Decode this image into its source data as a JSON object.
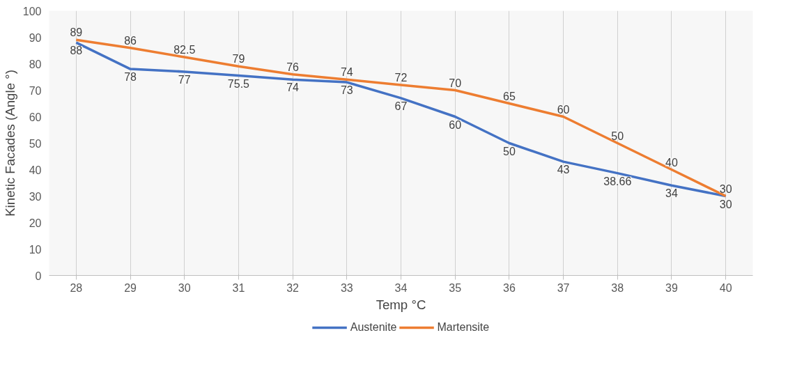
{
  "chart_data": {
    "type": "line",
    "xlabel": "Temp °C",
    "ylabel": "Kinetic Facades (Angle °)",
    "categories": [
      "28",
      "29",
      "30",
      "31",
      "32",
      "33",
      "34",
      "35",
      "36",
      "37",
      "38",
      "39",
      "40"
    ],
    "series": [
      {
        "name": "Austenite",
        "color": "#4472c4",
        "values": [
          88,
          78,
          77,
          75.5,
          74,
          73,
          67,
          60,
          50,
          43,
          38.66,
          34,
          30
        ]
      },
      {
        "name": "Martensite",
        "color": "#ed7d31",
        "values": [
          89,
          86,
          82.5,
          79,
          76,
          74,
          72,
          70,
          65,
          60,
          50,
          40,
          30
        ]
      }
    ],
    "ylim": [
      0,
      100
    ],
    "yticks": [
      0,
      10,
      20,
      30,
      40,
      50,
      60,
      70,
      80,
      90,
      100
    ],
    "grid": "x",
    "legend": "bottom",
    "data_labels": true,
    "marker": "none",
    "line_style": "solid"
  }
}
